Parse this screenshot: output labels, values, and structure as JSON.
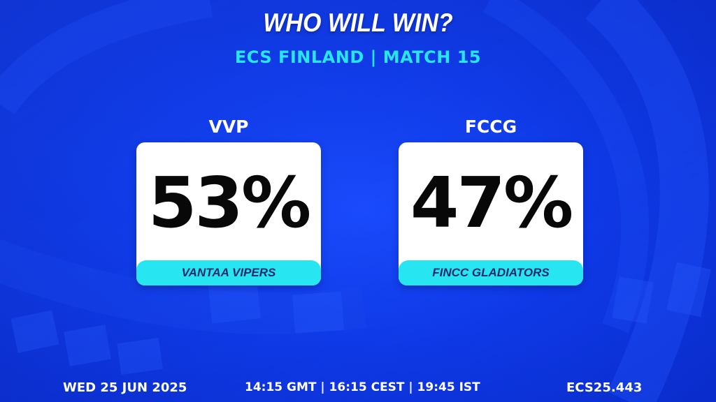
{
  "header": {
    "title": "WHO WILL WIN?",
    "subtitle": "ECS FINLAND | MATCH 15"
  },
  "teams": [
    {
      "abbr": "VVP",
      "percent": "53%",
      "name": "VANTAA VIPERS"
    },
    {
      "abbr": "FCCG",
      "percent": "47%",
      "name": "FINCC GLADIATORS"
    }
  ],
  "footer": {
    "date": "WED 25 JUN 2025",
    "time": "14:15 GMT | 16:15 CEST | 19:45 IST",
    "code": "ECS25.443"
  },
  "colors": {
    "background": "#0f3ae8",
    "accent": "#27e6f2",
    "card": "#ffffff",
    "text": "#ffffff"
  }
}
